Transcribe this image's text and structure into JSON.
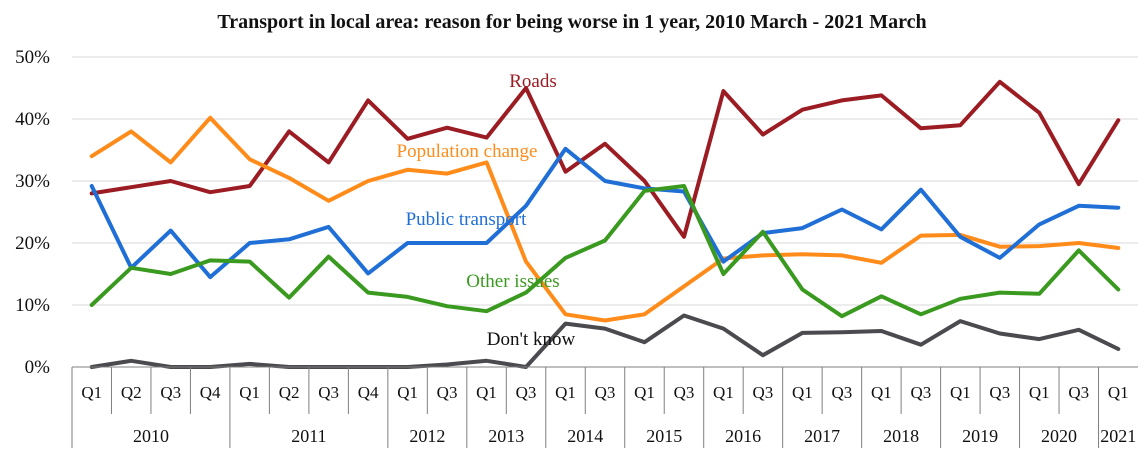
{
  "chart_data": {
    "type": "line",
    "title": "Transport in local area: reason for being worse in 1 year, 2010 March - 2021 March",
    "xlabel": "",
    "ylabel": "",
    "ylim": [
      0,
      50
    ],
    "yticks": [
      "0%",
      "10%",
      "20%",
      "30%",
      "40%",
      "50%"
    ],
    "grid": true,
    "categories": [
      "Q1",
      "Q2",
      "Q3",
      "Q4",
      "Q1",
      "Q2",
      "Q3",
      "Q4",
      "Q1",
      "Q3",
      "Q1",
      "Q3",
      "Q1",
      "Q3",
      "Q1",
      "Q3",
      "Q1",
      "Q3",
      "Q1",
      "Q3",
      "Q1",
      "Q3",
      "Q1",
      "Q3",
      "Q1",
      "Q3",
      "Q1"
    ],
    "years": [
      {
        "label": "2010",
        "span": 4
      },
      {
        "label": "2011",
        "span": 4
      },
      {
        "label": "2012",
        "span": 2
      },
      {
        "label": "2013",
        "span": 2
      },
      {
        "label": "2014",
        "span": 2
      },
      {
        "label": "2015",
        "span": 2
      },
      {
        "label": "2016",
        "span": 2
      },
      {
        "label": "2017",
        "span": 2
      },
      {
        "label": "2018",
        "span": 2
      },
      {
        "label": "2019",
        "span": 2
      },
      {
        "label": "2020",
        "span": 2
      },
      {
        "label": "2021",
        "span": 1
      }
    ],
    "series": [
      {
        "name": "Roads",
        "color": "#9b1c23",
        "values": [
          28,
          29,
          30,
          28.2,
          29.2,
          38,
          33,
          43,
          36.8,
          38.6,
          37,
          45,
          31.5,
          36,
          30,
          21,
          44.5,
          37.5,
          41.5,
          43,
          43.8,
          38.5,
          39,
          46,
          41,
          29.5,
          39.8
        ]
      },
      {
        "name": "Population change",
        "color": "#ff8c1a",
        "values": [
          34,
          38,
          33,
          40.2,
          33.5,
          30.5,
          26.8,
          30,
          31.8,
          31.2,
          33,
          17,
          8.5,
          7.5,
          8.5,
          13,
          17.5,
          18,
          18.2,
          18,
          16.8,
          21.2,
          21.3,
          19.4,
          19.5,
          20,
          19.2
        ]
      },
      {
        "name": "Public transport",
        "color": "#1f6fd6",
        "values": [
          29.2,
          16,
          22,
          14.5,
          20,
          20.6,
          22.6,
          15.1,
          20,
          20,
          20,
          26,
          35.2,
          30,
          28.8,
          28.3,
          17,
          21.6,
          22.4,
          25.4,
          22.2,
          28.6,
          21,
          17.6,
          23,
          26,
          25.7
        ]
      },
      {
        "name": "Other issues",
        "color": "#3a9a1f",
        "values": [
          10,
          16,
          15,
          17.2,
          17,
          11.2,
          17.8,
          12,
          11.3,
          9.8,
          9,
          12,
          17.6,
          20.4,
          28.4,
          29.2,
          15,
          21.8,
          12.5,
          8.2,
          11.4,
          8.5,
          11,
          12,
          11.8,
          18.8,
          12.5
        ]
      },
      {
        "name": "Don't know",
        "color": "#4a4a4f",
        "values": [
          0,
          1,
          0,
          0,
          0.5,
          0,
          0,
          0,
          0,
          0.4,
          1,
          0,
          7,
          6.2,
          4,
          8.3,
          6.2,
          1.9,
          5.5,
          5.6,
          5.8,
          3.6,
          7.4,
          5.4,
          4.5,
          6,
          2.9
        ]
      }
    ]
  }
}
